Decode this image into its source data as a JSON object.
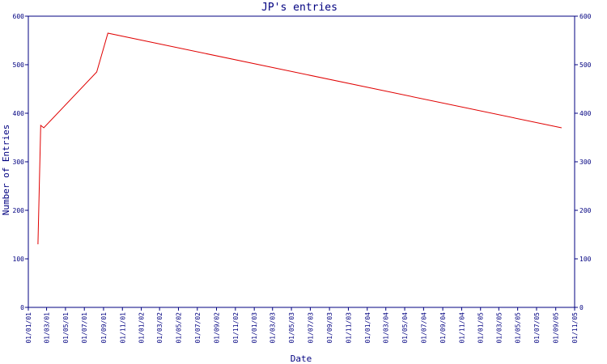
{
  "chart_data": {
    "type": "line",
    "title": "JP's entries",
    "xlabel": "Date",
    "ylabel": "Number of Entries",
    "x_tick_labels": [
      "01/01/01",
      "01/03/01",
      "01/05/01",
      "01/07/01",
      "01/09/01",
      "01/11/01",
      "01/01/02",
      "01/03/02",
      "01/05/02",
      "01/07/02",
      "01/09/02",
      "01/11/02",
      "01/01/03",
      "01/03/03",
      "01/05/03",
      "01/07/03",
      "01/09/03",
      "01/11/03",
      "01/01/04",
      "01/03/04",
      "01/05/04",
      "01/07/04",
      "01/09/04",
      "01/11/04",
      "01/01/05",
      "01/03/05",
      "01/05/05",
      "01/07/05",
      "01/09/05",
      "01/11/05"
    ],
    "y_ticks": [
      0,
      100,
      200,
      300,
      400,
      500,
      600
    ],
    "ylim": [
      0,
      600
    ],
    "grid": false,
    "series": [
      {
        "x": [
          "2001-02-01",
          "2001-02-10",
          "2001-02-20",
          "2001-08-10",
          "2001-09-15",
          "2005-09-20"
        ],
        "y": [
          130,
          375,
          370,
          485,
          565,
          370
        ],
        "color": "#e00000"
      }
    ]
  }
}
